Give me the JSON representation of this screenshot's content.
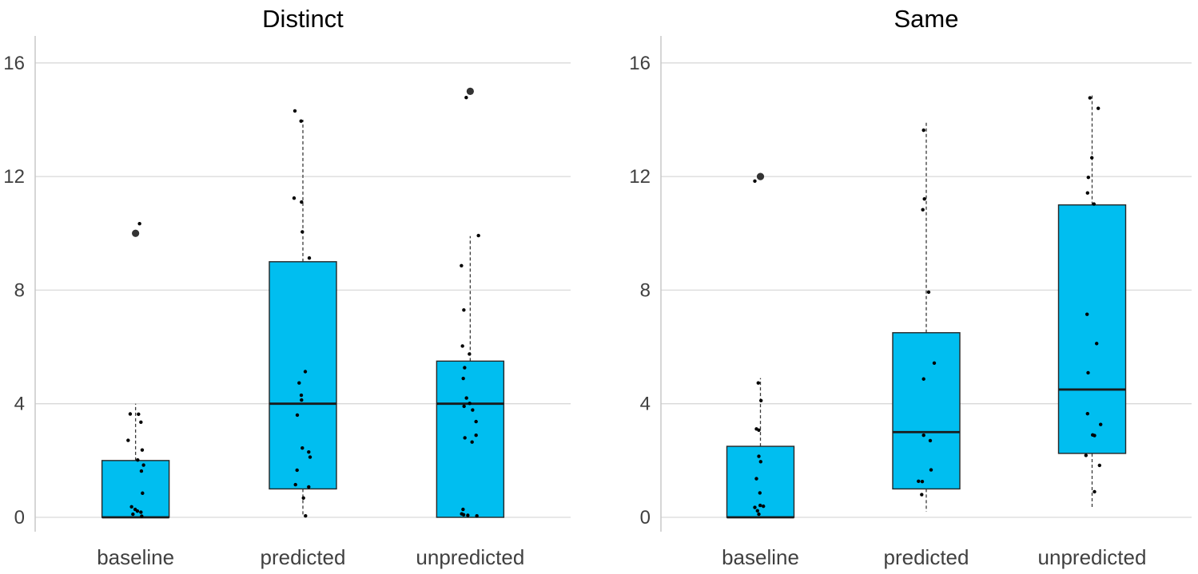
{
  "figure": {
    "kind": "two-panel boxplot with jittered points",
    "background": "#ffffff"
  },
  "chart_data": {
    "type": "boxplot",
    "panel_layout": "two facets side by side sharing y scale",
    "categories": [
      "baseline",
      "predicted",
      "unpredicted"
    ],
    "yticks": [
      0,
      4,
      8,
      12,
      16
    ],
    "ytick_labels": [
      "0",
      "4",
      "8",
      "12",
      "16"
    ],
    "ylim": [
      -0.6,
      16.9
    ],
    "grid": "horizontal major gridlines only",
    "legend": "none",
    "panels": [
      {
        "title": "Distinct",
        "boxes": [
          {
            "category": "baseline",
            "whisker_low": 0,
            "q1": 0,
            "median": 0,
            "q3": 2,
            "whisker_high": 4,
            "outliers": [
              10
            ],
            "points": [
              [
                5,
                10.34
              ],
              [
                -6.7,
                3.64
              ],
              [
                3.7,
                3.63
              ],
              [
                6.7,
                3.35
              ],
              [
                -9.3,
                2.71
              ],
              [
                8.3,
                2.37
              ],
              [
                2.7,
                2.02
              ],
              [
                10,
                1.84
              ],
              [
                7.3,
                1.63
              ],
              [
                8.7,
                0.85
              ],
              [
                -5,
                0.37
              ],
              [
                -0.5,
                0.28
              ],
              [
                2.3,
                0.22
              ],
              [
                6.7,
                0.18
              ],
              [
                -3.3,
                0.11
              ],
              [
                7.7,
                0.04
              ]
            ]
          },
          {
            "category": "predicted",
            "whisker_low": 0.05,
            "q1": 1,
            "median": 4,
            "q3": 9,
            "whisker_high": 14,
            "outliers": [],
            "points": [
              [
                -10,
                14.31
              ],
              [
                -2.3,
                13.95
              ],
              [
                -11,
                11.24
              ],
              [
                -1.7,
                11.1
              ],
              [
                -0.7,
                10.05
              ],
              [
                8,
                9.13
              ],
              [
                3,
                5.13
              ],
              [
                -4.7,
                4.73
              ],
              [
                -2,
                4.3
              ],
              [
                -1.7,
                4.13
              ],
              [
                -7,
                3.6
              ],
              [
                -0.7,
                2.44
              ],
              [
                7.3,
                2.3
              ],
              [
                9,
                2.12
              ],
              [
                -7.3,
                1.66
              ],
              [
                -9.3,
                1.15
              ],
              [
                7.3,
                1.07
              ],
              [
                0.7,
                0.68
              ],
              [
                3.3,
                0.05
              ]
            ]
          },
          {
            "category": "unpredicted",
            "whisker_low": 0,
            "q1": 0,
            "median": 4,
            "q3": 5.5,
            "whisker_high": 9.9,
            "outliers": [
              15
            ],
            "points": [
              [
                -5,
                14.78
              ],
              [
                10.3,
                9.92
              ],
              [
                -11,
                8.86
              ],
              [
                -8,
                7.3
              ],
              [
                -9.7,
                6.03
              ],
              [
                -1,
                5.75
              ],
              [
                -7,
                5.27
              ],
              [
                -8.7,
                4.89
              ],
              [
                -4.7,
                4.2
              ],
              [
                -0.7,
                4.01
              ],
              [
                -7.7,
                3.91
              ],
              [
                3,
                3.78
              ],
              [
                7.3,
                3.37
              ],
              [
                7.3,
                2.89
              ],
              [
                -6.7,
                2.8
              ],
              [
                2.3,
                2.65
              ],
              [
                -9,
                0.28
              ],
              [
                -10.7,
                0.12
              ],
              [
                -8.3,
                0.09
              ],
              [
                -3,
                0.07
              ],
              [
                8.3,
                0.05
              ]
            ]
          }
        ]
      },
      {
        "title": "Same",
        "boxes": [
          {
            "category": "baseline",
            "whisker_low": 0,
            "q1": 0,
            "median": 0,
            "q3": 2.5,
            "whisker_high": 4.9,
            "outliers": [
              12
            ],
            "points": [
              [
                -7,
                11.84
              ],
              [
                -2.7,
                4.73
              ],
              [
                0.7,
                4.11
              ],
              [
                -5,
                3.11
              ],
              [
                -2,
                3.07
              ],
              [
                -2,
                2.15
              ],
              [
                0.3,
                1.96
              ],
              [
                -5,
                1.36
              ],
              [
                -0.7,
                0.86
              ],
              [
                -0.3,
                0.42
              ],
              [
                3.7,
                0.39
              ],
              [
                -7,
                0.35
              ],
              [
                -3.7,
                0.23
              ],
              [
                -2,
                0.11
              ]
            ]
          },
          {
            "category": "predicted",
            "whisker_low": 0.2,
            "q1": 1,
            "median": 3,
            "q3": 6.5,
            "whisker_high": 13.9,
            "outliers": [],
            "points": [
              [
                -3.3,
                13.63
              ],
              [
                -2.3,
                11.21
              ],
              [
                -4.3,
                10.83
              ],
              [
                3,
                7.93
              ],
              [
                10,
                5.43
              ],
              [
                -3.3,
                4.87
              ],
              [
                -3.3,
                2.89
              ],
              [
                5,
                2.7
              ],
              [
                6,
                1.67
              ],
              [
                -9.7,
                1.27
              ],
              [
                -5,
                1.26
              ],
              [
                -5.7,
                0.8
              ]
            ]
          },
          {
            "category": "unpredicted",
            "whisker_low": 0.3,
            "q1": 2.25,
            "median": 4.5,
            "q3": 11,
            "whisker_high": 14.9,
            "outliers": [],
            "points": [
              [
                -2.7,
                14.77
              ],
              [
                7.7,
                14.4
              ],
              [
                -0.3,
                12.66
              ],
              [
                -4.7,
                11.97
              ],
              [
                -5.7,
                11.42
              ],
              [
                2.3,
                11.03
              ],
              [
                -6.3,
                7.15
              ],
              [
                5.7,
                6.12
              ],
              [
                -5,
                5.09
              ],
              [
                -5.7,
                3.65
              ],
              [
                10.7,
                3.27
              ],
              [
                0.7,
                2.9
              ],
              [
                3,
                2.88
              ],
              [
                -7.7,
                2.18
              ],
              [
                9.3,
                1.83
              ],
              [
                3,
                0.9
              ]
            ]
          }
        ]
      }
    ],
    "colors": {
      "box_fill": "#00BEF0",
      "box_border": "#262626",
      "median_line": "#1a1a1a",
      "whisker": "#3a3a3a",
      "gridline": "#d9d9d9",
      "axis_line": "#c8c8c8",
      "jitter_point": "#000000",
      "outlier_point": "#333333",
      "tick_text": "#404040",
      "category_text": "#404040",
      "title_text": "#000000"
    }
  }
}
